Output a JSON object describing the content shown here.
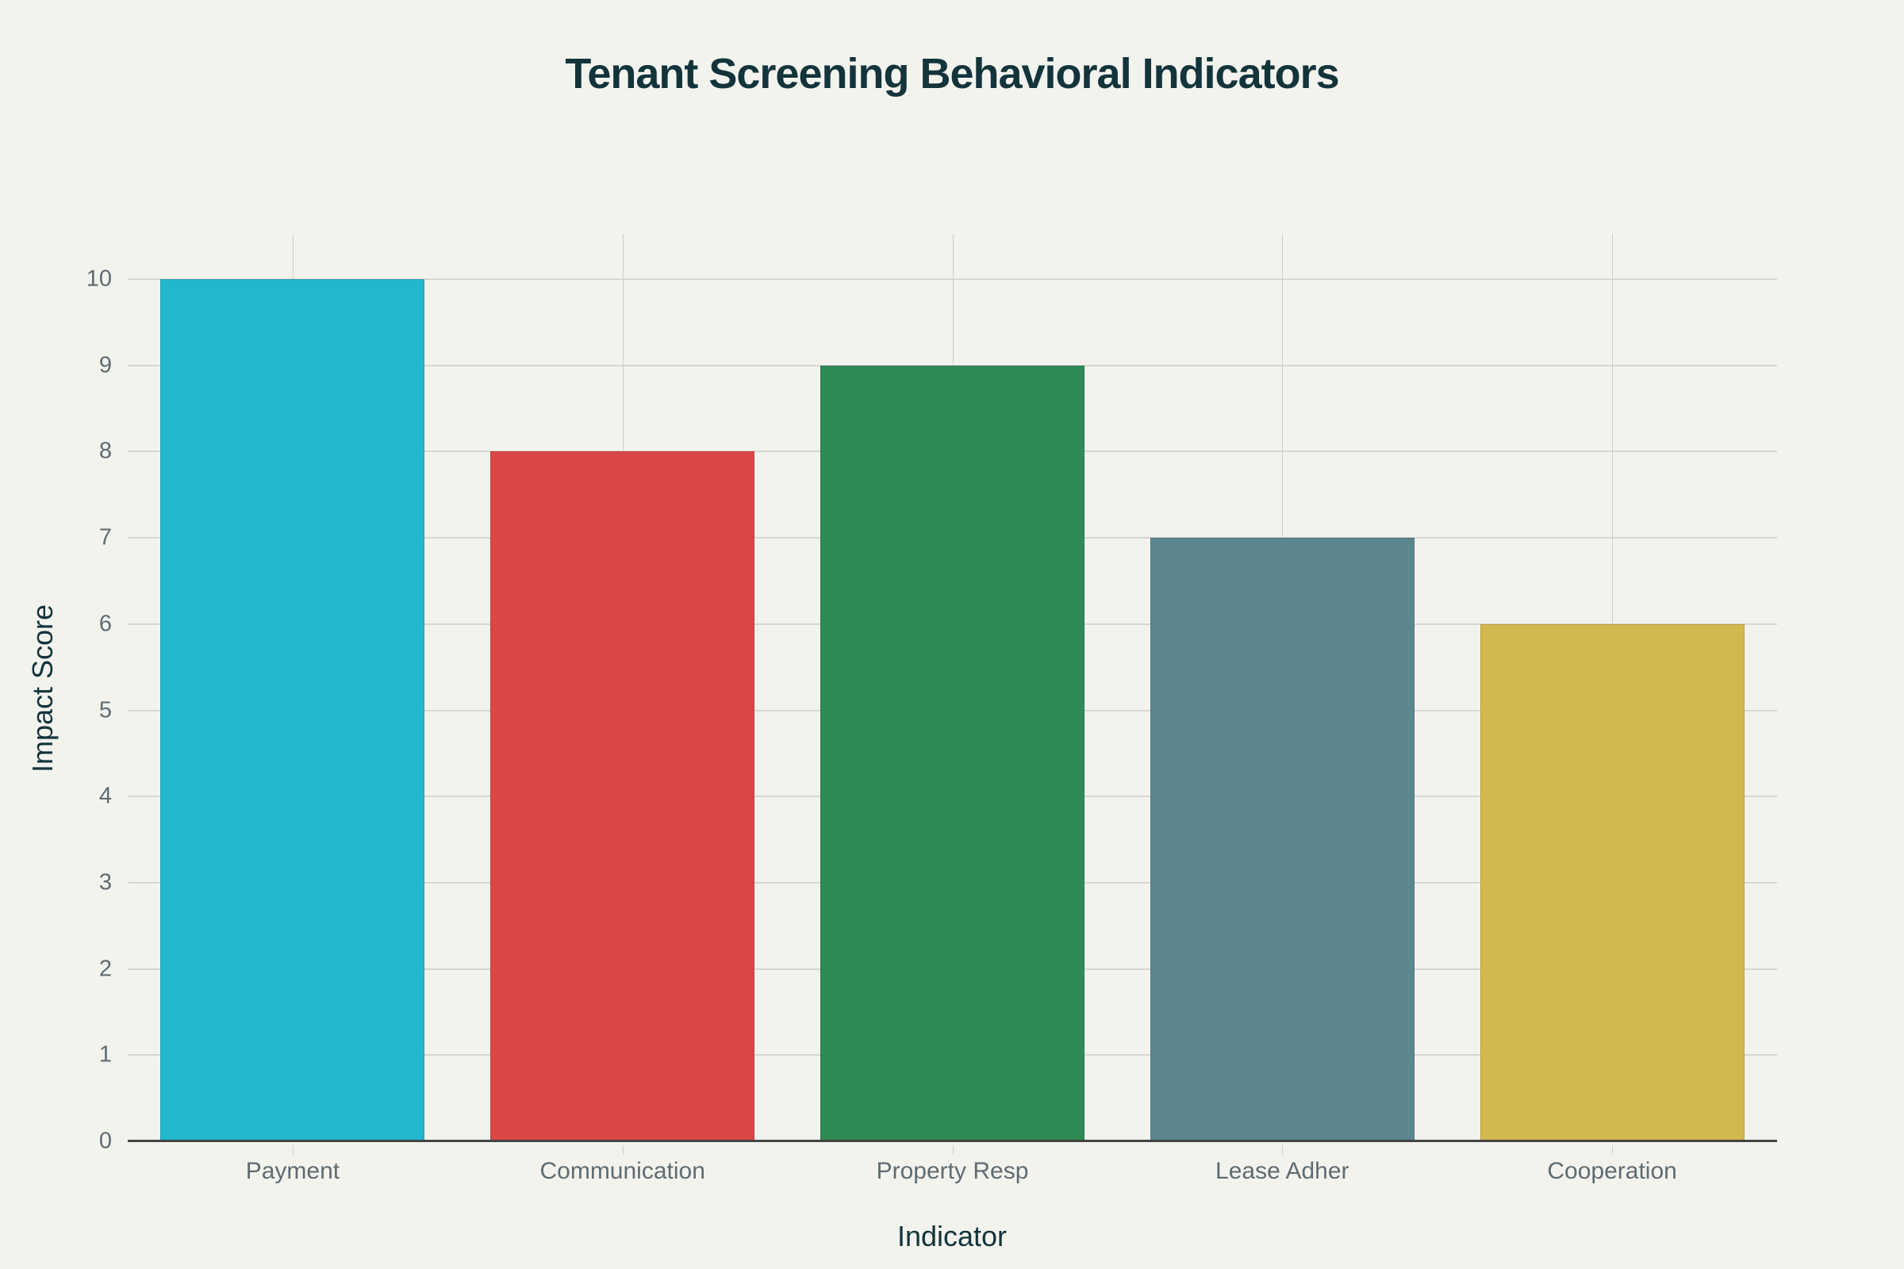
{
  "chart_data": {
    "type": "bar",
    "title": "Tenant Screening Behavioral Indicators",
    "xlabel": "Indicator",
    "ylabel": "Impact Score",
    "categories": [
      "Payment",
      "Communication",
      "Property Resp",
      "Lease Adher",
      "Cooperation"
    ],
    "values": [
      10,
      8,
      9,
      7,
      6
    ],
    "colors": [
      "#21b8cd",
      "#db4647",
      "#2e8a57",
      "#5d878f",
      "#d2b84d"
    ],
    "ylim": [
      0,
      10.8
    ],
    "yticks": [
      0,
      1,
      2,
      3,
      4,
      5,
      6,
      7,
      8,
      9,
      10
    ],
    "grid": true,
    "legend": "none"
  },
  "background": "#f3f3ee"
}
